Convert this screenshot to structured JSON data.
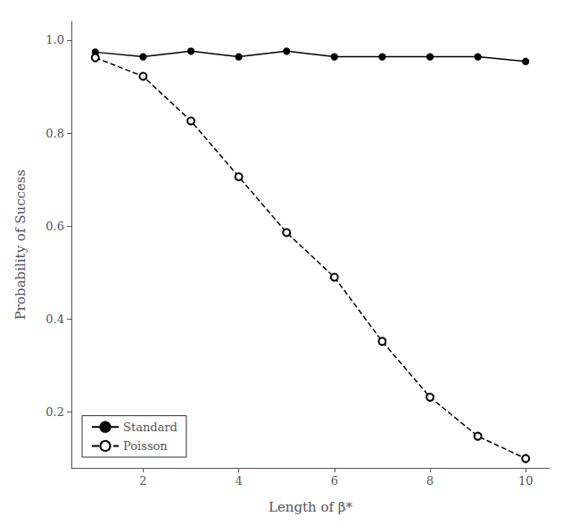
{
  "chart_data": {
    "type": "line",
    "xlabel": "Length of β*",
    "ylabel": "Probability of Success",
    "x": [
      1,
      2,
      3,
      4,
      5,
      6,
      7,
      8,
      9,
      10
    ],
    "series": [
      {
        "name": "Standard",
        "color": "#000000",
        "line_style": "solid",
        "marker": "filled_circle",
        "values": [
          0.974,
          0.964,
          0.976,
          0.964,
          0.976,
          0.964,
          0.964,
          0.964,
          0.964,
          0.954
        ]
      },
      {
        "name": "Poisson",
        "color": "#000000",
        "line_style": "dashed",
        "marker": "open_circle",
        "values": [
          0.962,
          0.922,
          0.826,
          0.706,
          0.586,
          0.49,
          0.352,
          0.232,
          0.148,
          0.1
        ]
      }
    ],
    "xlim": [
      0.5,
      10.5
    ],
    "ylim": [
      0.08,
      1.04
    ],
    "xticks": [
      2,
      4,
      6,
      8,
      10
    ],
    "yticks": [
      0.2,
      0.4,
      0.6,
      0.8,
      {
        "value": 1.0,
        "label": "1.0"
      }
    ],
    "grid": false,
    "legend": "lower left"
  }
}
